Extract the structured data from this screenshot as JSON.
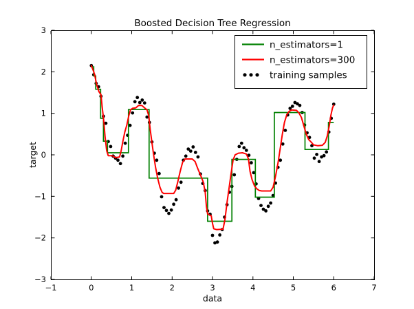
{
  "chart_data": {
    "type": "line+scatter",
    "title": "Boosted Decision Tree Regression",
    "xlabel": "data",
    "ylabel": "target",
    "xlim": [
      -1,
      7
    ],
    "ylim": [
      -3,
      3
    ],
    "grid": false,
    "background": "#ffffff",
    "frame_color": "#000000",
    "xticks": [
      {
        "v": -1,
        "label": "−1"
      },
      {
        "v": 0,
        "label": "0"
      },
      {
        "v": 1,
        "label": "1"
      },
      {
        "v": 2,
        "label": "2"
      },
      {
        "v": 3,
        "label": "3"
      },
      {
        "v": 4,
        "label": "4"
      },
      {
        "v": 5,
        "label": "5"
      },
      {
        "v": 6,
        "label": "6"
      },
      {
        "v": 7,
        "label": "7"
      }
    ],
    "yticks": [
      {
        "v": -3,
        "label": "−3"
      },
      {
        "v": -2,
        "label": "−2"
      },
      {
        "v": -1,
        "label": "−1"
      },
      {
        "v": 0,
        "label": "0"
      },
      {
        "v": 1,
        "label": "1"
      },
      {
        "v": 2,
        "label": "2"
      },
      {
        "v": 3,
        "label": "3"
      }
    ],
    "legend": {
      "position": "upper right",
      "entries": [
        {
          "label": "n_estimators=1",
          "type": "line",
          "color": "#008000"
        },
        {
          "label": "n_estimators=300",
          "type": "line",
          "color": "#ff0000"
        },
        {
          "label": "training samples",
          "type": "scatter",
          "color": "#000000"
        }
      ]
    },
    "tree1": {
      "name": "n_estimators=1",
      "color": "#008000",
      "style": "steps",
      "segments": [
        [
          0.0,
          0.06,
          2.12
        ],
        [
          0.06,
          0.11,
          1.9
        ],
        [
          0.11,
          0.23,
          1.58
        ],
        [
          0.23,
          0.3,
          0.88
        ],
        [
          0.3,
          0.4,
          0.33
        ],
        [
          0.4,
          0.92,
          0.05
        ],
        [
          0.92,
          1.43,
          1.09
        ],
        [
          1.43,
          2.88,
          -0.56
        ],
        [
          2.88,
          3.48,
          -1.6
        ],
        [
          3.48,
          4.06,
          -0.11
        ],
        [
          4.06,
          4.53,
          -1.02
        ],
        [
          4.53,
          5.29,
          1.02
        ],
        [
          5.29,
          5.87,
          0.13
        ],
        [
          5.87,
          6.0,
          0.78
        ]
      ]
    },
    "tree300": {
      "name": "n_estimators=300",
      "color": "#ff0000",
      "style": "line",
      "points": [
        [
          0,
          2.15
        ],
        [
          0.06,
          2.0
        ],
        [
          0.09,
          1.9
        ],
        [
          0.13,
          1.7
        ],
        [
          0.19,
          1.52
        ],
        [
          0.24,
          1.45
        ],
        [
          0.27,
          1.15
        ],
        [
          0.31,
          0.8
        ],
        [
          0.34,
          0.45
        ],
        [
          0.38,
          0.1
        ],
        [
          0.42,
          -0.02
        ],
        [
          0.52,
          -0.02
        ],
        [
          0.6,
          -0.07
        ],
        [
          0.7,
          -0.05
        ],
        [
          0.74,
          0.1
        ],
        [
          0.78,
          0.32
        ],
        [
          0.83,
          0.55
        ],
        [
          0.88,
          0.72
        ],
        [
          0.93,
          0.95
        ],
        [
          0.97,
          1.08
        ],
        [
          1.02,
          1.12
        ],
        [
          1.1,
          1.13
        ],
        [
          1.17,
          1.19
        ],
        [
          1.25,
          1.19
        ],
        [
          1.31,
          1.14
        ],
        [
          1.38,
          1.08
        ],
        [
          1.42,
          0.95
        ],
        [
          1.46,
          0.6
        ],
        [
          1.5,
          0.3
        ],
        [
          1.54,
          0.02
        ],
        [
          1.59,
          -0.3
        ],
        [
          1.64,
          -0.55
        ],
        [
          1.7,
          -0.78
        ],
        [
          1.75,
          -0.9
        ],
        [
          1.79,
          -0.93
        ],
        [
          2.04,
          -0.93
        ],
        [
          2.09,
          -0.85
        ],
        [
          2.14,
          -0.65
        ],
        [
          2.2,
          -0.4
        ],
        [
          2.26,
          -0.18
        ],
        [
          2.32,
          -0.1
        ],
        [
          2.5,
          -0.1
        ],
        [
          2.57,
          -0.16
        ],
        [
          2.63,
          -0.32
        ],
        [
          2.7,
          -0.48
        ],
        [
          2.77,
          -0.65
        ],
        [
          2.82,
          -0.9
        ],
        [
          2.85,
          -1.25
        ],
        [
          2.88,
          -1.42
        ],
        [
          2.97,
          -1.47
        ],
        [
          3.0,
          -1.65
        ],
        [
          3.03,
          -1.78
        ],
        [
          3.1,
          -1.8
        ],
        [
          3.26,
          -1.79
        ],
        [
          3.31,
          -1.55
        ],
        [
          3.36,
          -1.15
        ],
        [
          3.41,
          -0.8
        ],
        [
          3.46,
          -0.45
        ],
        [
          3.51,
          -0.12
        ],
        [
          3.56,
          0.0
        ],
        [
          3.64,
          0.04
        ],
        [
          3.74,
          0.05
        ],
        [
          3.84,
          0.02
        ],
        [
          3.89,
          -0.1
        ],
        [
          3.93,
          -0.4
        ],
        [
          3.98,
          -0.6
        ],
        [
          4.04,
          -0.75
        ],
        [
          4.1,
          -0.82
        ],
        [
          4.16,
          -0.86
        ],
        [
          4.22,
          -0.87
        ],
        [
          4.44,
          -0.87
        ],
        [
          4.5,
          -0.78
        ],
        [
          4.56,
          -0.52
        ],
        [
          4.62,
          -0.2
        ],
        [
          4.68,
          0.18
        ],
        [
          4.73,
          0.5
        ],
        [
          4.78,
          0.78
        ],
        [
          4.84,
          0.97
        ],
        [
          4.9,
          1.05
        ],
        [
          4.96,
          1.08
        ],
        [
          5.08,
          1.07
        ],
        [
          5.14,
          1.01
        ],
        [
          5.2,
          0.9
        ],
        [
          5.26,
          0.7
        ],
        [
          5.32,
          0.5
        ],
        [
          5.38,
          0.37
        ],
        [
          5.45,
          0.3
        ],
        [
          5.5,
          0.24
        ],
        [
          5.6,
          0.22
        ],
        [
          5.72,
          0.23
        ],
        [
          5.79,
          0.3
        ],
        [
          5.84,
          0.45
        ],
        [
          5.89,
          0.7
        ],
        [
          5.93,
          0.95
        ],
        [
          5.97,
          1.13
        ],
        [
          6.0,
          1.2
        ]
      ]
    },
    "scatter": {
      "name": "training samples",
      "color": "#000000",
      "marker": "circle",
      "points": [
        [
          0,
          2.15
        ],
        [
          0.06,
          1.93
        ],
        [
          0.12,
          1.72
        ],
        [
          0.18,
          1.64
        ],
        [
          0.24,
          1.41
        ],
        [
          0.3,
          0.93
        ],
        [
          0.36,
          0.76
        ],
        [
          0.42,
          0.32
        ],
        [
          0.48,
          0.2
        ],
        [
          0.54,
          -0.03
        ],
        [
          0.6,
          -0.08
        ],
        [
          0.66,
          -0.13
        ],
        [
          0.72,
          -0.21
        ],
        [
          0.78,
          -0.03
        ],
        [
          0.84,
          0.28
        ],
        [
          0.9,
          0.47
        ],
        [
          0.96,
          0.71
        ],
        [
          1.02,
          1.01
        ],
        [
          1.08,
          1.28
        ],
        [
          1.14,
          1.38
        ],
        [
          1.2,
          1.26
        ],
        [
          1.26,
          1.32
        ],
        [
          1.32,
          1.25
        ],
        [
          1.38,
          0.91
        ],
        [
          1.44,
          0.78
        ],
        [
          1.5,
          0.31
        ],
        [
          1.56,
          0.04
        ],
        [
          1.62,
          -0.13
        ],
        [
          1.68,
          -0.45
        ],
        [
          1.74,
          -1.01
        ],
        [
          1.8,
          -1.27
        ],
        [
          1.86,
          -1.34
        ],
        [
          1.92,
          -1.41
        ],
        [
          1.98,
          -1.33
        ],
        [
          2.04,
          -1.19
        ],
        [
          2.1,
          -1.08
        ],
        [
          2.16,
          -0.8
        ],
        [
          2.22,
          -0.66
        ],
        [
          2.28,
          -0.13
        ],
        [
          2.34,
          -0.03
        ],
        [
          2.4,
          0.14
        ],
        [
          2.46,
          0.09
        ],
        [
          2.52,
          0.19
        ],
        [
          2.58,
          0.06
        ],
        [
          2.64,
          -0.05
        ],
        [
          2.7,
          -0.46
        ],
        [
          2.76,
          -0.69
        ],
        [
          2.82,
          -0.86
        ],
        [
          2.88,
          -1.35
        ],
        [
          2.94,
          -1.43
        ],
        [
          3.0,
          -1.94
        ],
        [
          3.06,
          -2.12
        ],
        [
          3.12,
          -2.1
        ],
        [
          3.18,
          -1.93
        ],
        [
          3.24,
          -1.8
        ],
        [
          3.3,
          -1.5
        ],
        [
          3.36,
          -1.2
        ],
        [
          3.42,
          -0.9
        ],
        [
          3.48,
          -0.76
        ],
        [
          3.54,
          -0.48
        ],
        [
          3.6,
          -0.11
        ],
        [
          3.66,
          0.2
        ],
        [
          3.72,
          0.28
        ],
        [
          3.78,
          0.17
        ],
        [
          3.84,
          0.11
        ],
        [
          3.9,
          -0.01
        ],
        [
          3.96,
          -0.19
        ],
        [
          4.02,
          -0.43
        ],
        [
          4.08,
          -0.7
        ],
        [
          4.14,
          -1.05
        ],
        [
          4.2,
          -1.22
        ],
        [
          4.26,
          -1.31
        ],
        [
          4.32,
          -1.35
        ],
        [
          4.38,
          -1.24
        ],
        [
          4.44,
          -1.16
        ],
        [
          4.5,
          -0.98
        ],
        [
          4.56,
          -0.68
        ],
        [
          4.62,
          -0.3
        ],
        [
          4.68,
          -0.13
        ],
        [
          4.74,
          0.26
        ],
        [
          4.8,
          0.59
        ],
        [
          4.86,
          0.96
        ],
        [
          4.92,
          1.12
        ],
        [
          4.98,
          1.17
        ],
        [
          5.04,
          1.26
        ],
        [
          5.1,
          1.23
        ],
        [
          5.16,
          1.19
        ],
        [
          5.22,
          1.02
        ],
        [
          5.28,
          0.72
        ],
        [
          5.34,
          0.53
        ],
        [
          5.4,
          0.42
        ],
        [
          5.46,
          0.22
        ],
        [
          5.52,
          -0.08
        ],
        [
          5.58,
          0.01
        ],
        [
          5.64,
          -0.16
        ],
        [
          5.7,
          -0.05
        ],
        [
          5.76,
          -0.02
        ],
        [
          5.82,
          0.07
        ],
        [
          5.88,
          0.55
        ],
        [
          5.94,
          0.88
        ],
        [
          6.0,
          1.22
        ]
      ]
    }
  }
}
